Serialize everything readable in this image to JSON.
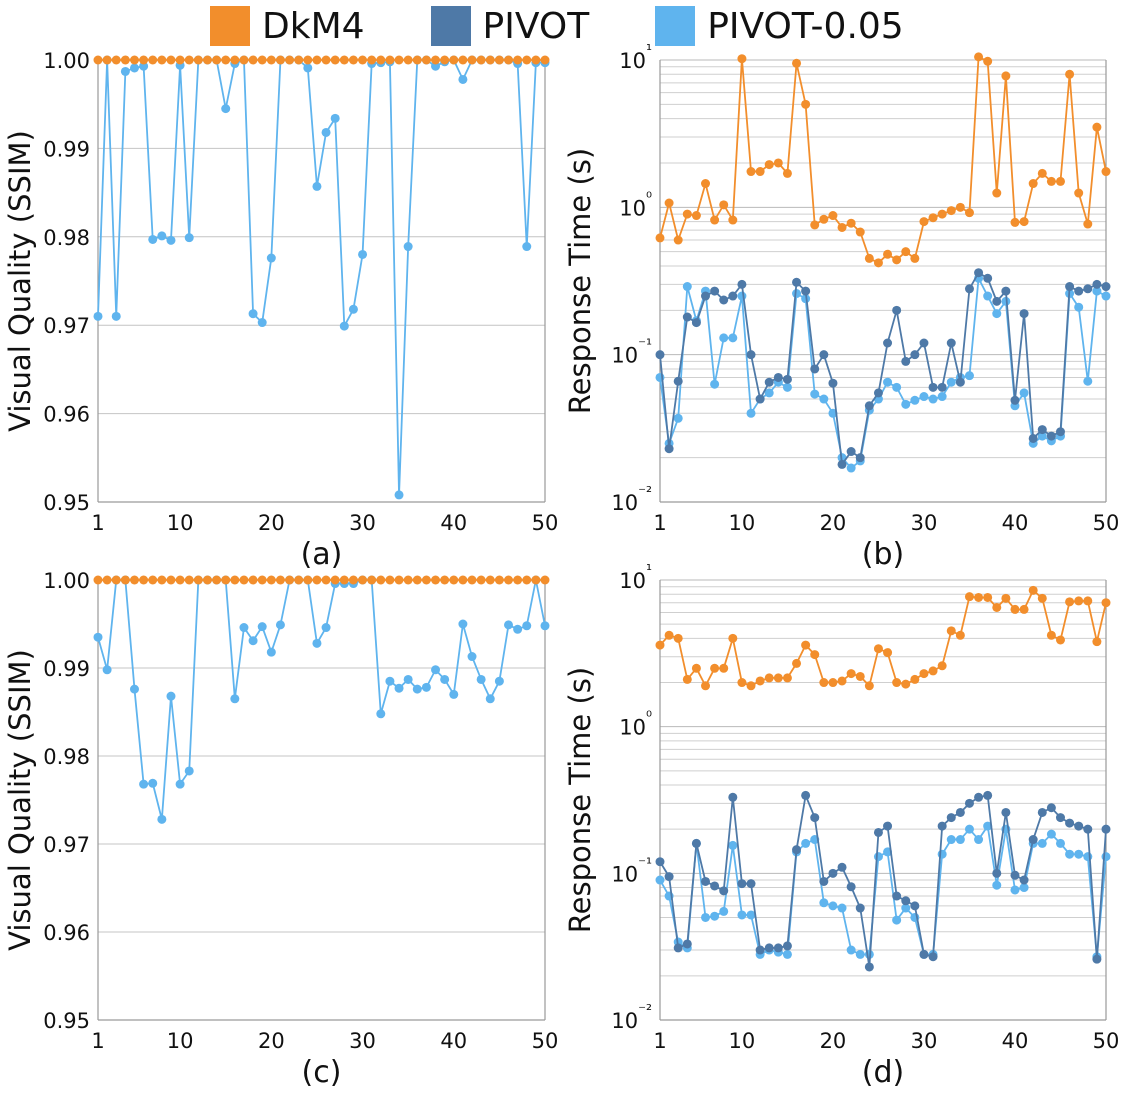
{
  "legend": [
    {
      "label": "DkM4",
      "color": "#F28E2C"
    },
    {
      "label": "PIVOT",
      "color": "#4E79A7"
    },
    {
      "label": "PIVOT-0.05",
      "color": "#5FB4EE"
    }
  ],
  "chart_data": [
    {
      "type": "line",
      "panel": "(a)",
      "ylabel": "Visual Quality (SSIM)",
      "xlim": [
        1,
        50
      ],
      "ylim": [
        0.95,
        1.0
      ],
      "y_scale": "linear",
      "x_ticks": [
        1,
        10,
        20,
        30,
        40,
        50
      ],
      "y_ticks": [
        "0.95",
        "0.96",
        "0.97",
        "0.98",
        "0.99",
        "1.00"
      ],
      "grid": "horizontal",
      "series": [
        {
          "name": "DkM4",
          "color": "#F28E2C",
          "values": [
            1.0,
            1.0,
            1.0,
            1.0,
            1.0,
            1.0,
            1.0,
            1.0,
            1.0,
            1.0,
            1.0,
            1.0,
            1.0,
            1.0,
            1.0,
            1.0,
            1.0,
            1.0,
            1.0,
            1.0,
            1.0,
            1.0,
            1.0,
            1.0,
            1.0,
            1.0,
            1.0,
            1.0,
            1.0,
            1.0,
            1.0,
            1.0,
            1.0,
            1.0,
            1.0,
            1.0,
            1.0,
            1.0,
            1.0,
            1.0,
            1.0,
            1.0,
            1.0,
            1.0,
            1.0,
            1.0,
            1.0,
            1.0,
            1.0,
            1.0
          ]
        },
        {
          "name": "PIVOT-0.05",
          "color": "#5FB4EE",
          "values": [
            0.971,
            1.0,
            0.971,
            0.9987,
            0.9991,
            0.9993,
            0.9797,
            0.9801,
            0.9796,
            0.9994,
            0.9799,
            1.0,
            1.0,
            1.0,
            0.9945,
            0.9996,
            1.0,
            0.9713,
            0.9703,
            0.9776,
            1.0,
            1.0,
            1.0,
            0.9991,
            0.9857,
            0.9918,
            0.9934,
            0.9699,
            0.9718,
            0.978,
            0.9996,
            0.9997,
            0.9998,
            0.9508,
            0.9789,
            1.0,
            1.0,
            0.9993,
            0.9998,
            1.0,
            0.9978,
            1.0,
            1.0,
            1.0,
            1.0,
            1.0,
            0.9996,
            0.9789,
            0.9997,
            0.9997
          ]
        }
      ]
    },
    {
      "type": "line",
      "panel": "(b)",
      "ylabel": "Response Time (s)",
      "xlim": [
        1,
        50
      ],
      "ylim": [
        0.01,
        10
      ],
      "y_scale": "log",
      "x_ticks": [
        1,
        10,
        20,
        30,
        40,
        50
      ],
      "y_ticks": [
        "10⁻²",
        "10⁻¹",
        "10⁰",
        "10¹"
      ],
      "grid": "horizontal",
      "series": [
        {
          "name": "DkM4",
          "color": "#F28E2C",
          "values": [
            0.62,
            1.07,
            0.6,
            0.9,
            0.88,
            1.45,
            0.82,
            1.04,
            0.82,
            10.2,
            1.75,
            1.75,
            1.95,
            2.0,
            1.7,
            9.5,
            5.0,
            0.76,
            0.83,
            0.88,
            0.73,
            0.78,
            0.68,
            0.45,
            0.42,
            0.48,
            0.44,
            0.5,
            0.45,
            0.8,
            0.85,
            0.9,
            0.95,
            1.0,
            0.92,
            10.5,
            9.8,
            1.25,
            7.8,
            0.79,
            0.8,
            1.45,
            1.7,
            1.5,
            1.5,
            8.0,
            1.25,
            0.77,
            3.5,
            1.75
          ]
        },
        {
          "name": "PIVOT",
          "color": "#4E79A7",
          "values": [
            0.1,
            0.023,
            0.066,
            0.18,
            0.165,
            0.25,
            0.27,
            0.235,
            0.25,
            0.3,
            0.1,
            0.05,
            0.065,
            0.07,
            0.068,
            0.31,
            0.27,
            0.08,
            0.1,
            0.064,
            0.018,
            0.022,
            0.02,
            0.045,
            0.055,
            0.12,
            0.2,
            0.09,
            0.1,
            0.12,
            0.06,
            0.06,
            0.12,
            0.065,
            0.28,
            0.36,
            0.33,
            0.23,
            0.27,
            0.049,
            0.19,
            0.027,
            0.031,
            0.028,
            0.03,
            0.29,
            0.27,
            0.28,
            0.3,
            0.29
          ]
        },
        {
          "name": "PIVOT-0.05",
          "color": "#5FB4EE",
          "values": [
            0.07,
            0.025,
            0.037,
            0.29,
            0.17,
            0.27,
            0.063,
            0.13,
            0.13,
            0.25,
            0.04,
            0.05,
            0.055,
            0.065,
            0.06,
            0.26,
            0.24,
            0.054,
            0.05,
            0.04,
            0.02,
            0.017,
            0.019,
            0.042,
            0.05,
            0.065,
            0.06,
            0.046,
            0.049,
            0.052,
            0.05,
            0.052,
            0.065,
            0.07,
            0.072,
            0.33,
            0.25,
            0.19,
            0.23,
            0.045,
            0.055,
            0.025,
            0.028,
            0.026,
            0.028,
            0.26,
            0.21,
            0.066,
            0.27,
            0.25
          ]
        }
      ]
    },
    {
      "type": "line",
      "panel": "(c)",
      "ylabel": "Visual Quality (SSIM)",
      "xlim": [
        1,
        50
      ],
      "ylim": [
        0.95,
        1.0
      ],
      "y_scale": "linear",
      "x_ticks": [
        1,
        10,
        20,
        30,
        40,
        50
      ],
      "y_ticks": [
        "0.95",
        "0.96",
        "0.97",
        "0.98",
        "0.99",
        "1.00"
      ],
      "grid": "horizontal",
      "series": [
        {
          "name": "DkM4",
          "color": "#F28E2C",
          "values": [
            1.0,
            1.0,
            1.0,
            1.0,
            1.0,
            1.0,
            1.0,
            1.0,
            1.0,
            1.0,
            1.0,
            1.0,
            1.0,
            1.0,
            1.0,
            1.0,
            1.0,
            1.0,
            1.0,
            1.0,
            1.0,
            1.0,
            1.0,
            1.0,
            1.0,
            1.0,
            1.0,
            1.0,
            1.0,
            1.0,
            1.0,
            1.0,
            1.0,
            1.0,
            1.0,
            1.0,
            1.0,
            1.0,
            1.0,
            1.0,
            1.0,
            1.0,
            1.0,
            1.0,
            1.0,
            1.0,
            1.0,
            1.0,
            1.0,
            1.0
          ]
        },
        {
          "name": "PIVOT-0.05",
          "color": "#5FB4EE",
          "values": [
            0.9935,
            0.9898,
            1.0,
            1.0,
            0.9876,
            0.9768,
            0.9769,
            0.9728,
            0.9868,
            0.9768,
            0.9783,
            1.0,
            1.0,
            1.0,
            1.0,
            0.9865,
            0.9946,
            0.9931,
            0.9947,
            0.9918,
            0.9949,
            1.0,
            1.0,
            1.0,
            0.9928,
            0.9946,
            0.9996,
            0.9996,
            0.9996,
            1.0,
            1.0,
            0.9848,
            0.9885,
            0.9877,
            0.9887,
            0.9876,
            0.9878,
            0.9898,
            0.9887,
            0.987,
            0.995,
            0.9913,
            0.9887,
            0.9865,
            0.9885,
            0.9949,
            0.9944,
            0.9948,
            1.0,
            0.9948
          ]
        }
      ]
    },
    {
      "type": "line",
      "panel": "(d)",
      "ylabel": "Response Time (s)",
      "xlim": [
        1,
        50
      ],
      "ylim": [
        0.01,
        10
      ],
      "y_scale": "log",
      "x_ticks": [
        1,
        10,
        20,
        30,
        40,
        50
      ],
      "y_ticks": [
        "10⁻²",
        "10⁻¹",
        "10⁰",
        "10¹"
      ],
      "grid": "horizontal",
      "series": [
        {
          "name": "DkM4",
          "color": "#F28E2C",
          "values": [
            3.6,
            4.2,
            4.0,
            2.1,
            2.5,
            1.9,
            2.5,
            2.5,
            4.0,
            2.0,
            1.9,
            2.05,
            2.15,
            2.15,
            2.15,
            2.7,
            3.6,
            3.1,
            2.0,
            2.0,
            2.05,
            2.3,
            2.2,
            1.9,
            3.4,
            3.2,
            2.0,
            1.95,
            2.1,
            2.3,
            2.4,
            2.6,
            4.5,
            4.2,
            7.7,
            7.6,
            7.6,
            6.5,
            7.5,
            6.3,
            6.3,
            8.5,
            7.5,
            4.2,
            3.9,
            7.1,
            7.2,
            7.2,
            3.8,
            7.0
          ]
        },
        {
          "name": "PIVOT",
          "color": "#4E79A7",
          "values": [
            0.12,
            0.095,
            0.031,
            0.033,
            0.16,
            0.088,
            0.082,
            0.076,
            0.33,
            0.085,
            0.085,
            0.03,
            0.031,
            0.031,
            0.032,
            0.145,
            0.34,
            0.24,
            0.088,
            0.1,
            0.11,
            0.081,
            0.058,
            0.023,
            0.19,
            0.21,
            0.07,
            0.065,
            0.06,
            0.028,
            0.027,
            0.21,
            0.24,
            0.26,
            0.3,
            0.33,
            0.34,
            0.1,
            0.26,
            0.097,
            0.09,
            0.17,
            0.26,
            0.28,
            0.24,
            0.22,
            0.21,
            0.2,
            0.026,
            0.2
          ]
        },
        {
          "name": "PIVOT-0.05",
          "color": "#5FB4EE",
          "values": [
            0.09,
            0.07,
            0.034,
            0.031,
            0.16,
            0.05,
            0.051,
            0.055,
            0.155,
            0.052,
            0.052,
            0.028,
            0.03,
            0.029,
            0.028,
            0.14,
            0.16,
            0.17,
            0.063,
            0.06,
            0.058,
            0.03,
            0.028,
            0.028,
            0.13,
            0.14,
            0.048,
            0.058,
            0.05,
            0.028,
            0.028,
            0.135,
            0.17,
            0.17,
            0.2,
            0.17,
            0.21,
            0.083,
            0.2,
            0.077,
            0.08,
            0.16,
            0.16,
            0.185,
            0.16,
            0.135,
            0.135,
            0.13,
            0.027,
            0.13
          ]
        }
      ]
    }
  ]
}
